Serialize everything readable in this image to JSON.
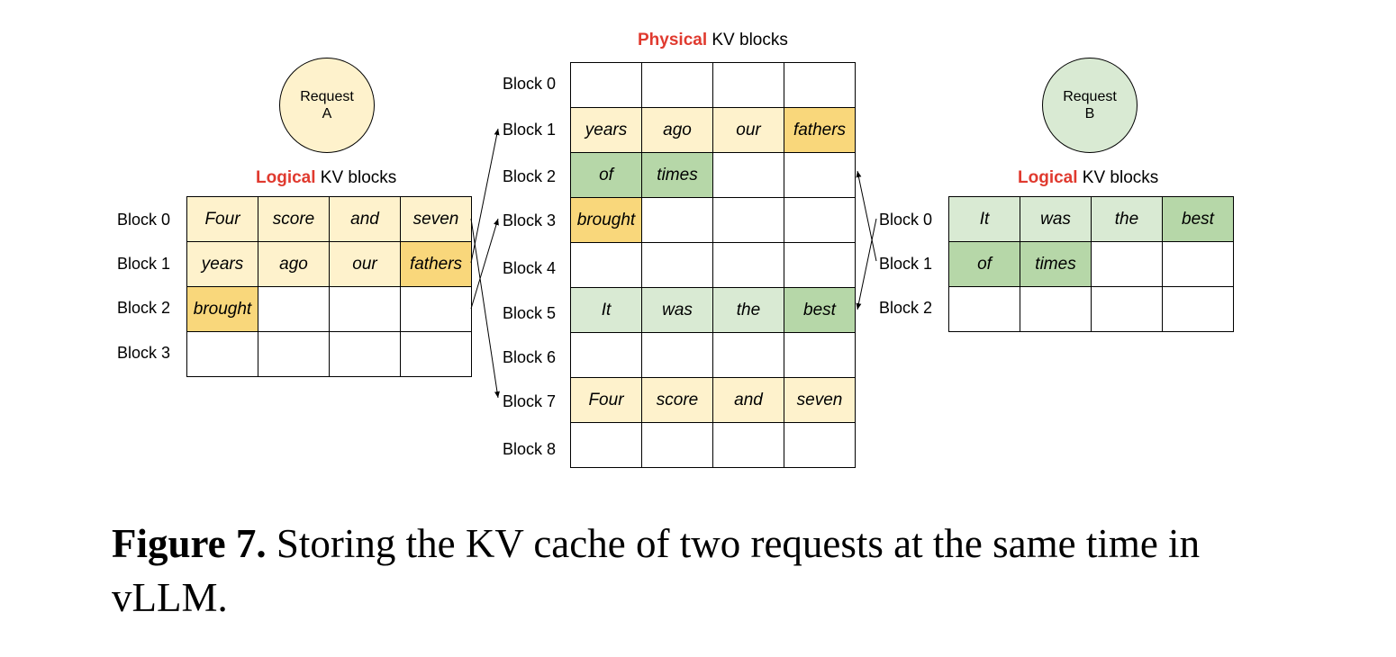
{
  "physical": {
    "title_highlight": "Physical",
    "title_rest": " KV blocks",
    "block_labels": [
      "Block 0",
      "Block 1",
      "Block 2",
      "Block 3",
      "Block 4",
      "Block 5",
      "Block 6",
      "Block 7",
      "Block 8"
    ],
    "rows": [
      [
        "",
        "",
        "",
        ""
      ],
      [
        "years",
        "ago",
        "our",
        "fathers"
      ],
      [
        "of",
        "times",
        "",
        ""
      ],
      [
        "brought",
        "",
        "",
        ""
      ],
      [
        "",
        "",
        "",
        ""
      ],
      [
        "It",
        "was",
        "the",
        "best"
      ],
      [
        "",
        "",
        "",
        ""
      ],
      [
        "Four",
        "score",
        "and",
        "seven"
      ],
      [
        "",
        "",
        "",
        ""
      ]
    ]
  },
  "request_a": {
    "label_line1": "Request",
    "label_line2": "A",
    "title_highlight": "Logical",
    "title_rest": " KV blocks",
    "block_labels": [
      "Block 0",
      "Block 1",
      "Block 2",
      "Block 3"
    ],
    "rows": [
      [
        "Four",
        "score",
        "and",
        "seven"
      ],
      [
        "years",
        "ago",
        "our",
        "fathers"
      ],
      [
        "brought",
        "",
        "",
        ""
      ],
      [
        "",
        "",
        "",
        ""
      ]
    ]
  },
  "request_b": {
    "label_line1": "Request",
    "label_line2": "B",
    "title_highlight": "Logical",
    "title_rest": " KV blocks",
    "block_labels": [
      "Block 0",
      "Block 1",
      "Block 2"
    ],
    "rows": [
      [
        "It",
        "was",
        "the",
        "best"
      ],
      [
        "of",
        "times",
        "",
        ""
      ],
      [
        "",
        "",
        "",
        ""
      ]
    ]
  },
  "mapping_a": [
    {
      "logical": "Block 0",
      "physical": "Block 7"
    },
    {
      "logical": "Block 1",
      "physical": "Block 1"
    },
    {
      "logical": "Block 2",
      "physical": "Block 3"
    }
  ],
  "mapping_b": [
    {
      "logical": "Block 0",
      "physical": "Block 5"
    },
    {
      "logical": "Block 1",
      "physical": "Block 2"
    }
  ],
  "colors": {
    "light_yellow": "#fef2cc",
    "dark_yellow": "#f9d77b",
    "light_green": "#d9ead3",
    "dark_green": "#b6d7a8",
    "highlight_red": "#e03a2f"
  },
  "caption": {
    "label": "Figure 7.",
    "text": " Storing the KV cache of two requests at the same time in vLLM."
  }
}
